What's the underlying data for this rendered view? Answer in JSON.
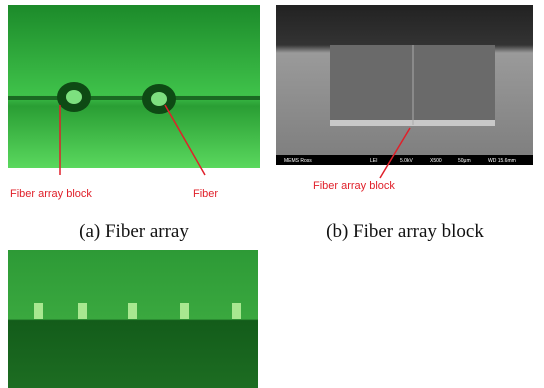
{
  "panels": [
    {
      "caption": "(a) Fiber array",
      "labels": [
        "Fiber array block",
        "Fiber"
      ]
    },
    {
      "caption": "(b) Fiber array block",
      "labels": [
        "Fiber array block"
      ],
      "info_bar": [
        "MEMS Ross",
        "LEI",
        "5.0kV",
        "X500",
        "50μm",
        "WD 15.6mm"
      ]
    }
  ]
}
